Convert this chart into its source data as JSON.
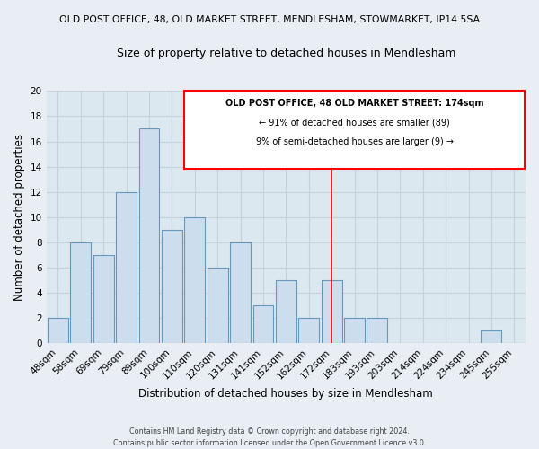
{
  "title1": "OLD POST OFFICE, 48, OLD MARKET STREET, MENDLESHAM, STOWMARKET, IP14 5SA",
  "title2": "Size of property relative to detached houses in Mendlesham",
  "xlabel": "Distribution of detached houses by size in Mendlesham",
  "ylabel": "Number of detached properties",
  "bar_labels": [
    "48sqm",
    "58sqm",
    "69sqm",
    "79sqm",
    "89sqm",
    "100sqm",
    "110sqm",
    "120sqm",
    "131sqm",
    "141sqm",
    "152sqm",
    "162sqm",
    "172sqm",
    "183sqm",
    "193sqm",
    "203sqm",
    "214sqm",
    "224sqm",
    "234sqm",
    "245sqm",
    "255sqm"
  ],
  "bar_heights": [
    2,
    8,
    7,
    12,
    17,
    9,
    10,
    6,
    8,
    3,
    5,
    2,
    5,
    2,
    2,
    0,
    0,
    0,
    0,
    1,
    0
  ],
  "bar_color": "#ccdded",
  "bar_edge_color": "#6699bb",
  "ylim": [
    0,
    20
  ],
  "yticks": [
    0,
    2,
    4,
    6,
    8,
    10,
    12,
    14,
    16,
    18,
    20
  ],
  "red_line_index": 12,
  "annotation_title": "OLD POST OFFICE, 48 OLD MARKET STREET: 174sqm",
  "annotation_line1": "← 91% of detached houses are smaller (89)",
  "annotation_line2": "9% of semi-detached houses are larger (9) →",
  "footer1": "Contains HM Land Registry data © Crown copyright and database right 2024.",
  "footer2": "Contains public sector information licensed under the Open Government Licence v3.0.",
  "background_color": "#e8eef4",
  "grid_color": "#c8d0d8",
  "bar_bg_color": "#dce8f0"
}
